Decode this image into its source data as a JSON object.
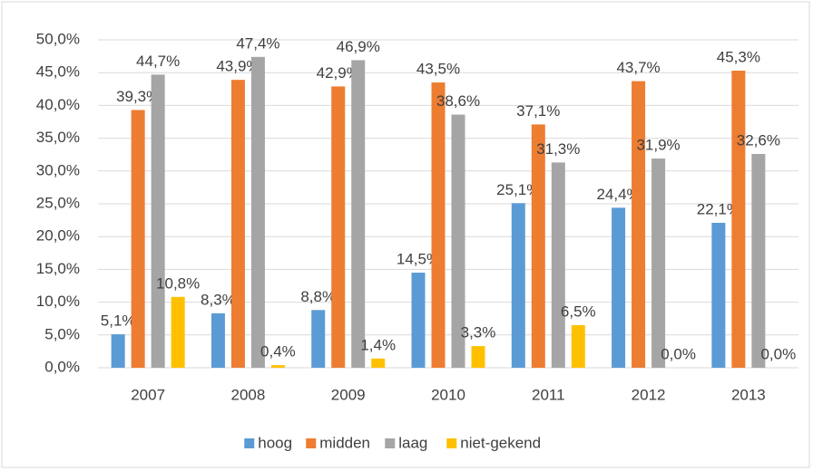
{
  "chart_data": {
    "type": "bar",
    "categories": [
      "2007",
      "2008",
      "2009",
      "2010",
      "2011",
      "2012",
      "2013"
    ],
    "series": [
      {
        "name": "hoog",
        "color": "#5b9bd5",
        "values": [
          5.1,
          8.3,
          8.8,
          14.5,
          25.1,
          24.4,
          22.1
        ],
        "value_labels": [
          "5,1%",
          "8,3%",
          "8,8%",
          "14,5%",
          "25,1%",
          "24,4%",
          "22,1%"
        ]
      },
      {
        "name": "midden",
        "color": "#ed7d31",
        "values": [
          39.3,
          43.9,
          42.9,
          43.5,
          37.1,
          43.7,
          45.3
        ],
        "value_labels": [
          "39,3%",
          "43,9%",
          "42,9%",
          "43,5%",
          "37,1%",
          "43,7%",
          "45,3%"
        ]
      },
      {
        "name": "laag",
        "color": "#a5a5a5",
        "values": [
          44.7,
          47.4,
          46.9,
          38.6,
          31.3,
          31.9,
          32.6
        ],
        "value_labels": [
          "44,7%",
          "47,4%",
          "46,9%",
          "38,6%",
          "31,3%",
          "31,9%",
          "32,6%"
        ]
      },
      {
        "name": "niet-gekend",
        "color": "#ffc000",
        "values": [
          10.8,
          0.4,
          1.4,
          3.3,
          6.5,
          0.0,
          0.0
        ],
        "value_labels": [
          "10,8%",
          "0,4%",
          "1,4%",
          "3,3%",
          "6,5%",
          "0,0%",
          "0,0%"
        ]
      }
    ],
    "ylim": [
      0,
      50
    ],
    "yticks": [
      {
        "value": 0,
        "label": "0,0%"
      },
      {
        "value": 5,
        "label": "5,0%"
      },
      {
        "value": 10,
        "label": "10,0%"
      },
      {
        "value": 15,
        "label": "15,0%"
      },
      {
        "value": 20,
        "label": "20,0%"
      },
      {
        "value": 25,
        "label": "25,0%"
      },
      {
        "value": 30,
        "label": "30,0%"
      },
      {
        "value": 35,
        "label": "35,0%"
      },
      {
        "value": 40,
        "label": "40,0%"
      },
      {
        "value": 45,
        "label": "45,0%"
      },
      {
        "value": 50,
        "label": "50,0%"
      }
    ],
    "grid": true,
    "legend": "bottom"
  }
}
